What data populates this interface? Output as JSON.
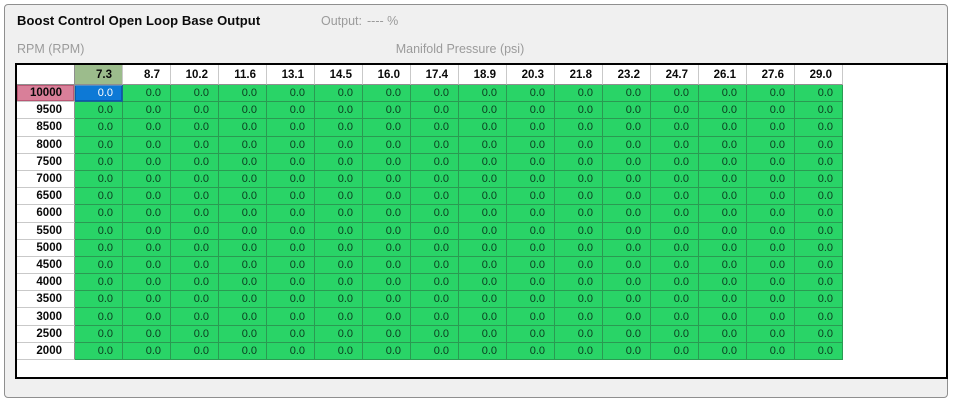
{
  "window": {
    "title": "Boost Control Open Loop Base Output",
    "output_label": "Output:",
    "output_value": "---- %"
  },
  "axes": {
    "y_label": "RPM (RPM)",
    "x_label": "Manifold Pressure (psi)"
  },
  "table": {
    "column_headers": [
      "7.3",
      "8.7",
      "10.2",
      "11.6",
      "13.1",
      "14.5",
      "16.0",
      "17.4",
      "18.9",
      "20.3",
      "21.8",
      "23.2",
      "24.7",
      "26.1",
      "27.6",
      "29.0"
    ],
    "row_headers": [
      "10000",
      "9500",
      "8500",
      "8000",
      "7500",
      "7000",
      "6500",
      "6000",
      "5500",
      "5000",
      "4500",
      "4000",
      "3500",
      "3000",
      "2500",
      "2000"
    ],
    "values": [
      [
        "0.0",
        "0.0",
        "0.0",
        "0.0",
        "0.0",
        "0.0",
        "0.0",
        "0.0",
        "0.0",
        "0.0",
        "0.0",
        "0.0",
        "0.0",
        "0.0",
        "0.0",
        "0.0"
      ],
      [
        "0.0",
        "0.0",
        "0.0",
        "0.0",
        "0.0",
        "0.0",
        "0.0",
        "0.0",
        "0.0",
        "0.0",
        "0.0",
        "0.0",
        "0.0",
        "0.0",
        "0.0",
        "0.0"
      ],
      [
        "0.0",
        "0.0",
        "0.0",
        "0.0",
        "0.0",
        "0.0",
        "0.0",
        "0.0",
        "0.0",
        "0.0",
        "0.0",
        "0.0",
        "0.0",
        "0.0",
        "0.0",
        "0.0"
      ],
      [
        "0.0",
        "0.0",
        "0.0",
        "0.0",
        "0.0",
        "0.0",
        "0.0",
        "0.0",
        "0.0",
        "0.0",
        "0.0",
        "0.0",
        "0.0",
        "0.0",
        "0.0",
        "0.0"
      ],
      [
        "0.0",
        "0.0",
        "0.0",
        "0.0",
        "0.0",
        "0.0",
        "0.0",
        "0.0",
        "0.0",
        "0.0",
        "0.0",
        "0.0",
        "0.0",
        "0.0",
        "0.0",
        "0.0"
      ],
      [
        "0.0",
        "0.0",
        "0.0",
        "0.0",
        "0.0",
        "0.0",
        "0.0",
        "0.0",
        "0.0",
        "0.0",
        "0.0",
        "0.0",
        "0.0",
        "0.0",
        "0.0",
        "0.0"
      ],
      [
        "0.0",
        "0.0",
        "0.0",
        "0.0",
        "0.0",
        "0.0",
        "0.0",
        "0.0",
        "0.0",
        "0.0",
        "0.0",
        "0.0",
        "0.0",
        "0.0",
        "0.0",
        "0.0"
      ],
      [
        "0.0",
        "0.0",
        "0.0",
        "0.0",
        "0.0",
        "0.0",
        "0.0",
        "0.0",
        "0.0",
        "0.0",
        "0.0",
        "0.0",
        "0.0",
        "0.0",
        "0.0",
        "0.0"
      ],
      [
        "0.0",
        "0.0",
        "0.0",
        "0.0",
        "0.0",
        "0.0",
        "0.0",
        "0.0",
        "0.0",
        "0.0",
        "0.0",
        "0.0",
        "0.0",
        "0.0",
        "0.0",
        "0.0"
      ],
      [
        "0.0",
        "0.0",
        "0.0",
        "0.0",
        "0.0",
        "0.0",
        "0.0",
        "0.0",
        "0.0",
        "0.0",
        "0.0",
        "0.0",
        "0.0",
        "0.0",
        "0.0",
        "0.0"
      ],
      [
        "0.0",
        "0.0",
        "0.0",
        "0.0",
        "0.0",
        "0.0",
        "0.0",
        "0.0",
        "0.0",
        "0.0",
        "0.0",
        "0.0",
        "0.0",
        "0.0",
        "0.0",
        "0.0"
      ],
      [
        "0.0",
        "0.0",
        "0.0",
        "0.0",
        "0.0",
        "0.0",
        "0.0",
        "0.0",
        "0.0",
        "0.0",
        "0.0",
        "0.0",
        "0.0",
        "0.0",
        "0.0",
        "0.0"
      ],
      [
        "0.0",
        "0.0",
        "0.0",
        "0.0",
        "0.0",
        "0.0",
        "0.0",
        "0.0",
        "0.0",
        "0.0",
        "0.0",
        "0.0",
        "0.0",
        "0.0",
        "0.0",
        "0.0"
      ],
      [
        "0.0",
        "0.0",
        "0.0",
        "0.0",
        "0.0",
        "0.0",
        "0.0",
        "0.0",
        "0.0",
        "0.0",
        "0.0",
        "0.0",
        "0.0",
        "0.0",
        "0.0",
        "0.0"
      ],
      [
        "0.0",
        "0.0",
        "0.0",
        "0.0",
        "0.0",
        "0.0",
        "0.0",
        "0.0",
        "0.0",
        "0.0",
        "0.0",
        "0.0",
        "0.0",
        "0.0",
        "0.0",
        "0.0"
      ],
      [
        "0.0",
        "0.0",
        "0.0",
        "0.0",
        "0.0",
        "0.0",
        "0.0",
        "0.0",
        "0.0",
        "0.0",
        "0.0",
        "0.0",
        "0.0",
        "0.0",
        "0.0",
        "0.0"
      ]
    ],
    "selected": {
      "row": 0,
      "col": 0
    },
    "colors": {
      "cell_green": "#29d467",
      "selected_cell_blue": "#0d79d6",
      "selected_row_header_pink": "#d97f99",
      "selected_col_header_sage": "#9cbc8c"
    }
  }
}
